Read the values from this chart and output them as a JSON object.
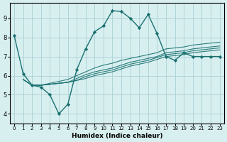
{
  "xlabel": "Humidex (Indice chaleur)",
  "bg_color": "#d8eff0",
  "grid_color": "#b0d4d8",
  "line_color": "#1a7070",
  "xlim": [
    -0.5,
    23.5
  ],
  "ylim": [
    3.5,
    9.8
  ],
  "yticks": [
    4,
    5,
    6,
    7,
    8,
    9
  ],
  "xticks": [
    0,
    1,
    2,
    3,
    4,
    5,
    6,
    7,
    8,
    9,
    10,
    11,
    12,
    13,
    14,
    15,
    16,
    17,
    18,
    19,
    20,
    21,
    22,
    23
  ],
  "main_x": [
    0,
    1,
    2,
    3,
    4,
    5,
    6,
    7,
    8,
    9,
    10,
    11,
    12,
    13,
    14,
    15,
    16,
    17,
    18,
    19,
    20,
    21,
    22,
    23
  ],
  "main_y": [
    8.1,
    6.1,
    5.5,
    5.4,
    5.0,
    4.0,
    4.5,
    6.3,
    7.4,
    8.3,
    8.6,
    9.4,
    9.35,
    9.0,
    8.5,
    9.2,
    8.2,
    7.0,
    6.8,
    7.2,
    7.0,
    7.0,
    7.0,
    7.0
  ],
  "band_lines_x": [
    1,
    2,
    3,
    4,
    5,
    6,
    7,
    8,
    9,
    10,
    11,
    12,
    13,
    14,
    15,
    16,
    17,
    18,
    19,
    20,
    21,
    22,
    23
  ],
  "band_lines": [
    [
      5.8,
      5.5,
      5.5,
      5.55,
      5.6,
      5.65,
      5.75,
      5.85,
      6.0,
      6.1,
      6.2,
      6.35,
      6.5,
      6.6,
      6.7,
      6.85,
      7.0,
      7.05,
      7.1,
      7.2,
      7.25,
      7.3,
      7.35
    ],
    [
      5.8,
      5.5,
      5.5,
      5.55,
      5.6,
      5.65,
      5.75,
      5.95,
      6.1,
      6.2,
      6.3,
      6.45,
      6.6,
      6.7,
      6.8,
      6.95,
      7.1,
      7.15,
      7.2,
      7.3,
      7.35,
      7.4,
      7.45
    ],
    [
      5.8,
      5.5,
      5.5,
      5.55,
      5.6,
      5.65,
      5.85,
      6.05,
      6.2,
      6.3,
      6.4,
      6.55,
      6.7,
      6.8,
      6.9,
      7.0,
      7.2,
      7.25,
      7.3,
      7.4,
      7.45,
      7.5,
      7.55
    ],
    [
      5.8,
      5.5,
      5.5,
      5.6,
      5.7,
      5.8,
      6.0,
      6.2,
      6.4,
      6.55,
      6.65,
      6.8,
      6.9,
      7.0,
      7.1,
      7.2,
      7.4,
      7.45,
      7.5,
      7.6,
      7.65,
      7.7,
      7.75
    ]
  ]
}
